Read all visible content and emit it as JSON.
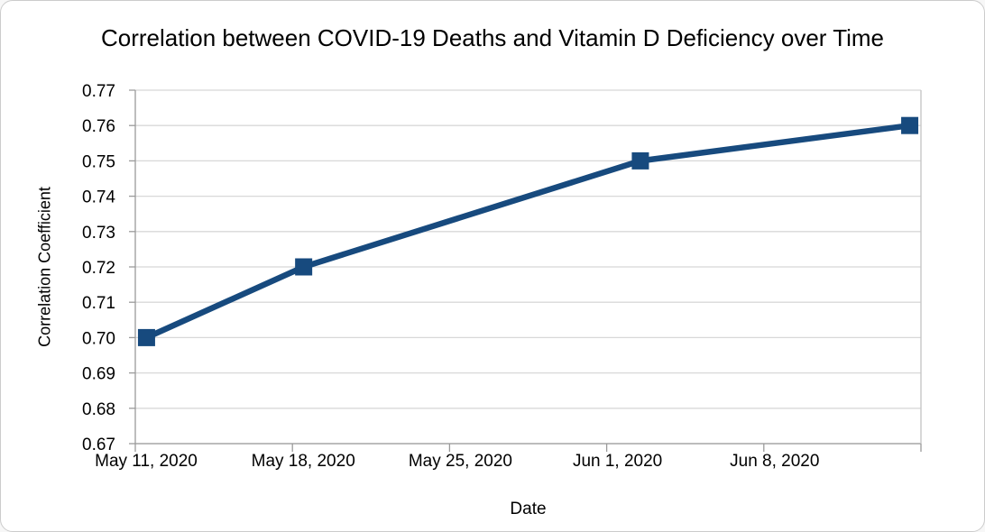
{
  "chart_data": {
    "type": "line",
    "title": "Correlation between COVID-19 Deaths and Vitamin D Deficiency over Time",
    "xlabel": "Date",
    "ylabel": "Correlation Coefficient",
    "legend": "none",
    "grid": "horizontal-only",
    "ylim": [
      0.67,
      0.77
    ],
    "y_tick_labels": [
      "0.77",
      "0.76",
      "0.75",
      "0.74",
      "0.73",
      "0.72",
      "0.71",
      "0.70",
      "0.69",
      "0.68",
      "0.67"
    ],
    "x_range_days": [
      0,
      35
    ],
    "x_ticks": [
      {
        "day": 0,
        "label": "May 11, 2020"
      },
      {
        "day": 7,
        "label": "May 18, 2020"
      },
      {
        "day": 14,
        "label": "May 25, 2020"
      },
      {
        "day": 21,
        "label": "Jun 1, 2020"
      },
      {
        "day": 28,
        "label": "Jun 8, 2020"
      },
      {
        "day": 35,
        "label": ""
      }
    ],
    "series": [
      {
        "name": "Correlation Coefficient",
        "color": "#174a7e",
        "marker": "square",
        "marker_size": 19,
        "line_width": 6.5,
        "points": [
          {
            "date": "May 11, 2020",
            "day": 0.5,
            "value": 0.7
          },
          {
            "date": "May 18, 2020",
            "day": 7.5,
            "value": 0.72
          },
          {
            "date": "Jun 2, 2020",
            "day": 22.5,
            "value": 0.75
          },
          {
            "date": "Jun 14, 2020",
            "day": 34.5,
            "value": 0.76
          }
        ]
      }
    ],
    "layout": {
      "plot_left": 149,
      "plot_right": 1020,
      "plot_top": 99,
      "plot_bottom": 491,
      "x_label_dx": 12,
      "x_label_baseline": 516,
      "tick_length": 9,
      "y_tick_length": 7,
      "grid_color": "#d8d8d8",
      "axis_color": "#9a9a9a",
      "edge_color": "#c4c4c4",
      "tick_font_size": 19
    }
  }
}
